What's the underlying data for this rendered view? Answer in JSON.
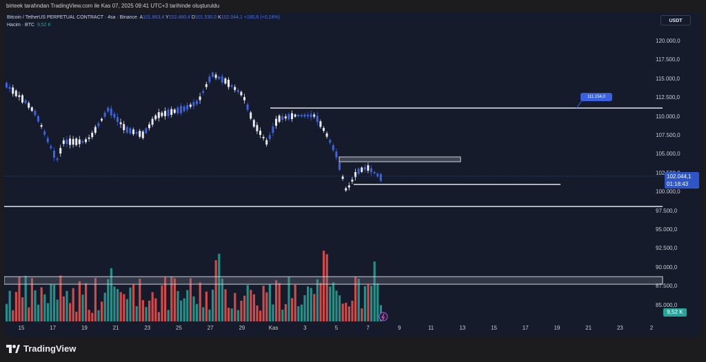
{
  "header": {
    "text": "birteek tarafından TradingView.com ile Kas 07, 2025 09:41 UTC+3 tarihinde oluşturuldu"
  },
  "legend": {
    "symbol": "Bitcoin / TetherUS PERPETUAL CONTRACT · 4sa · Binance",
    "open_label": "A",
    "open": "101.863,4",
    "high_label": "Y",
    "high": "102.480,4",
    "low_label": "D",
    "low": "101.530,0",
    "close_label": "K",
    "close": "102.044,1",
    "change": "+180,6 (+0,18%)",
    "volume_label": "Hacim · BTC",
    "volume_value": "9,52 K"
  },
  "currency_button": "USDT",
  "price_axis": [
    "120.000,0",
    "117.500,0",
    "115.000,0",
    "112.500,0",
    "110.000,0",
    "107.500,0",
    "105.000,0",
    "102.500,0",
    "100.000,0",
    "97.500,0",
    "95.000,0",
    "92.500,0",
    "90.000,0",
    "87.500,0",
    "85.000,0"
  ],
  "current_price": {
    "price": "102.044,1",
    "countdown": "01:18:43"
  },
  "volume_badge": "9,52 K",
  "callout_label": "111.154,0",
  "time_axis": [
    "15",
    "17",
    "19",
    "21",
    "23",
    "25",
    "27",
    "29",
    "Kas",
    "3",
    "5",
    "7",
    "9",
    "11",
    "13",
    "15",
    "17",
    "19",
    "21",
    "23",
    "2"
  ],
  "footer": {
    "brand": "TradingView"
  },
  "colors": {
    "up": "#3d63dd",
    "down": "#e9eaee",
    "vol_up": "#26a69a",
    "vol_down": "#ef5350",
    "background": "#151b2b"
  }
}
